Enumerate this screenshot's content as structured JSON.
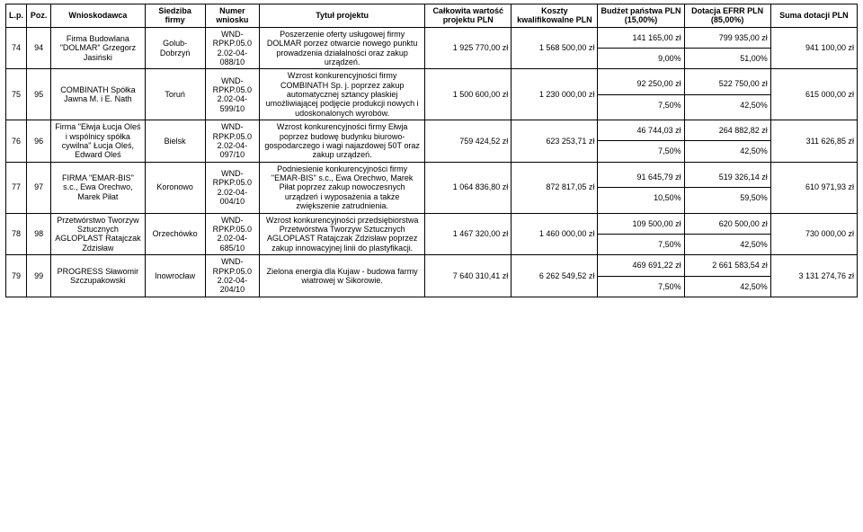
{
  "headers": [
    "L.p.",
    "Poz.",
    "Wnioskodawca",
    "Siedziba firmy",
    "Numer wniosku",
    "Tytuł projektu",
    "Całkowita wartość projektu PLN",
    "Koszty kwalifikowalne PLN",
    "Budżet państwa PLN (15,00%)",
    "Dotacja EFRR PLN (85,00%)",
    "Suma dotacji PLN"
  ],
  "rows": [
    {
      "lp": "74",
      "poz": "94",
      "wnioskodawca": "Firma Budowlana \"DOLMAR\" Grzegorz Jasiński",
      "siedziba": "Golub-Dobrzyń",
      "numer": "WND-RPKP.05.0 2.02-04-088/10",
      "tytul": "Poszerzenie oferty usługowej firmy DOLMAR porzez otwarcie nowego punktu prowadzenia działalności oraz zakup urządzeń.",
      "calkowita": "1 925 770,00 zł",
      "koszty": "1 568 500,00 zł",
      "bp_top": "141 165,00 zł",
      "bp_bot": "9,00%",
      "de_top": "799 935,00 zł",
      "de_bot": "51,00%",
      "suma": "941 100,00 zł"
    },
    {
      "lp": "75",
      "poz": "95",
      "wnioskodawca": "COMBINATH Spółka Jawna M. i E. Nath",
      "siedziba": "Toruń",
      "numer": "WND-RPKP.05.0 2.02-04-599/10",
      "tytul": "Wzrost konkurencyjności firmy COMBINATH Sp. j. poprzez zakup automatycznej sztancy płaskiej umożliwiającej podjęcie produkcji nowych i udoskonalonych wyrobów.",
      "calkowita": "1 500 600,00 zł",
      "koszty": "1 230 000,00 zł",
      "bp_top": "92 250,00 zł",
      "bp_bot": "7,50%",
      "de_top": "522 750,00 zł",
      "de_bot": "42,50%",
      "suma": "615 000,00 zł"
    },
    {
      "lp": "76",
      "poz": "96",
      "wnioskodawca": "Firma \"Ełwja Łucja Oleś i wspólnicy spółka cywilna\" Łucja Oleś, Edward Oleś",
      "siedziba": "Bielsk",
      "numer": "WND-RPKP.05.0 2.02-04-097/10",
      "tytul": "Wzrost konkurencyjności firmy Ełwja poprzez budowę budynku biurowo-gospodarczego i wagi najazdowej 50T oraz zakup urządzeń.",
      "calkowita": "759 424,52 zł",
      "koszty": "623 253,71 zł",
      "bp_top": "46 744,03 zł",
      "bp_bot": "7,50%",
      "de_top": "264 882,82 zł",
      "de_bot": "42,50%",
      "suma": "311 626,85 zł"
    },
    {
      "lp": "77",
      "poz": "97",
      "wnioskodawca": "FIRMA \"EMAR-BIS\" s.c., Ewa Orechwo, Marek Piłat",
      "siedziba": "Koronowo",
      "numer": "WND-RPKP.05.0 2.02-04-004/10",
      "tytul": "Podniesienie konkurencyjności firmy \"EMAR-BIS\" s.c., Ewa Orechwo, Marek Piłat poprzez zakup nowoczesnych urządzeń i wyposażenia a także zwiększenie zatrudnienia.",
      "calkowita": "1 064 836,80 zł",
      "koszty": "872 817,05 zł",
      "bp_top": "91 645,79 zł",
      "bp_bot": "10,50%",
      "de_top": "519 326,14 zł",
      "de_bot": "59,50%",
      "suma": "610 971,93 zł"
    },
    {
      "lp": "78",
      "poz": "98",
      "wnioskodawca": "Przetwórstwo Tworzyw Sztucznych AGLOPLAST Ratajczak Zdzisław",
      "siedziba": "Orzechówko",
      "numer": "WND-RPKP.05.0 2.02-04-685/10",
      "tytul": "Wzrost konkurencyjności przedsiębiorstwa Przetwórstwa Tworzyw Sztucznych AGLOPLAST Ratajczak Zdzisław poprzez zakup innowacyjnej linii do plastyfikacji.",
      "calkowita": "1 467 320,00 zł",
      "koszty": "1 460 000,00 zł",
      "bp_top": "109 500,00 zł",
      "bp_bot": "7,50%",
      "de_top": "620 500,00 zł",
      "de_bot": "42,50%",
      "suma": "730 000,00 zł"
    },
    {
      "lp": "79",
      "poz": "99",
      "wnioskodawca": "PROGRESS Sławomir Szczupakowski",
      "siedziba": "Inowrocław",
      "numer": "WND-RPKP.05.0 2.02-04-204/10",
      "tytul": "Zielona energia dla Kujaw - budowa farmy wiatrowej w Sikorowie.",
      "calkowita": "7 640 310,41 zł",
      "koszty": "6 262 549,52 zł",
      "bp_top": "469 691,22 zł",
      "bp_bot": "7,50%",
      "de_top": "2 661 583,54 zł",
      "de_bot": "42,50%",
      "suma": "3 131 274,76 zł"
    }
  ]
}
